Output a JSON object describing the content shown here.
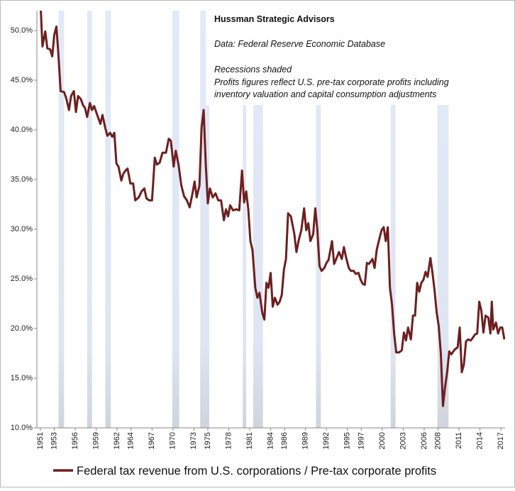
{
  "chart_data": {
    "type": "line",
    "annotations": [
      "Hussman Strategic Advisors",
      "Data: Federal Reserve Economic Database",
      "Recessions shaded",
      "Profits figures reflect U.S. pre-tax  corporate profits including",
      "inventory valuation and capital consumption adjustments"
    ],
    "x": [
      1951.0,
      1951.3,
      1951.7,
      1952.0,
      1952.4,
      1952.7,
      1953.0,
      1953.3,
      1953.6,
      1953.9,
      1954.4,
      1954.7,
      1955.1,
      1955.4,
      1955.8,
      1956.1,
      1956.4,
      1956.8,
      1957.1,
      1957.4,
      1957.7,
      1958.1,
      1958.4,
      1958.7,
      1959.1,
      1959.6,
      1959.9,
      1960.3,
      1960.6,
      1961.0,
      1961.3,
      1961.6,
      1961.9,
      1962.2,
      1962.6,
      1962.9,
      1963.2,
      1963.5,
      1963.9,
      1964.3,
      1964.6,
      1965.1,
      1965.5,
      1965.9,
      1966.2,
      1966.6,
      1967.0,
      1967.4,
      1967.7,
      1968.1,
      1968.5,
      1969.0,
      1969.4,
      1969.7,
      1970.1,
      1970.4,
      1970.8,
      1971.2,
      1971.6,
      1972.0,
      1972.4,
      1972.8,
      1973.1,
      1973.4,
      1973.8,
      1974.1,
      1974.4,
      1974.7,
      1975.0,
      1975.3,
      1975.7,
      1976.1,
      1976.5,
      1976.9,
      1977.3,
      1977.6,
      1977.9,
      1978.2,
      1978.6,
      1979.1,
      1979.5,
      1979.9,
      1980.2,
      1980.5,
      1980.8,
      1981.1,
      1981.4,
      1981.8,
      1982.1,
      1982.4,
      1982.8,
      1983.1,
      1983.4,
      1983.7,
      1984.0,
      1984.3,
      1984.6,
      1985.0,
      1985.3,
      1985.6,
      1985.9,
      1986.2,
      1986.5,
      1986.9,
      1987.4,
      1987.7,
      1988.0,
      1988.4,
      1988.8,
      1989.1,
      1989.4,
      1989.7,
      1990.1,
      1990.4,
      1990.7,
      1991.0,
      1991.3,
      1991.7,
      1992.0,
      1992.3,
      1992.8,
      1993.1,
      1993.4,
      1993.8,
      1994.2,
      1994.5,
      1994.8,
      1995.2,
      1995.5,
      1995.9,
      1996.2,
      1996.6,
      1996.9,
      1997.2,
      1997.5,
      1997.8,
      1998.1,
      1998.6,
      1998.9,
      1999.2,
      1999.5,
      1999.9,
      2000.2,
      2000.5,
      2000.8,
      2001.1,
      2001.4,
      2001.7,
      2002.0,
      2002.4,
      2002.8,
      2003.1,
      2003.4,
      2003.7,
      2004.1,
      2004.4,
      2004.7,
      2005.0,
      2005.3,
      2005.6,
      2005.9,
      2006.2,
      2006.5,
      2006.9,
      2007.2,
      2007.5,
      2007.8,
      2008.1,
      2008.4,
      2008.7,
      2009.0,
      2009.3,
      2009.6,
      2009.9,
      2010.4,
      2010.8,
      2011.1,
      2011.4,
      2011.7,
      2012.0,
      2012.3,
      2012.7,
      2013.0,
      2013.3,
      2013.6,
      2013.9,
      2014.2,
      2014.5,
      2014.8,
      2015.2,
      2015.5,
      2015.7,
      2015.9,
      2016.3,
      2016.6,
      2016.9,
      2017.2,
      2017.5
    ],
    "series": [
      {
        "name": "Federal tax revenue from U.S. corporations / Pre-tax corporate profits",
        "color": "#6e1f1f",
        "values": [
          53,
          48.4,
          49.9,
          48.2,
          48.1,
          47.4,
          49.6,
          50.4,
          47.4,
          43.9,
          43.8,
          43.2,
          42.0,
          43.4,
          43.9,
          41.8,
          43.4,
          43.1,
          42.5,
          42.2,
          41.3,
          42.7,
          42.0,
          42.4,
          41.6,
          40.6,
          41.5,
          40.2,
          39.4,
          39.7,
          39.3,
          39.7,
          36.6,
          36.3,
          34.9,
          35.6,
          35.9,
          36.1,
          34.6,
          34.6,
          32.9,
          33.2,
          33.8,
          34.1,
          33.1,
          32.9,
          32.9,
          37.2,
          36.5,
          36.7,
          37.7,
          37.7,
          39.1,
          38.9,
          36.3,
          37.9,
          36.5,
          34.4,
          33.3,
          32.9,
          32.2,
          33.6,
          34.8,
          33.2,
          34.4,
          40.2,
          42.0,
          36.6,
          32.6,
          34.1,
          33.2,
          33.6,
          32.9,
          32.9,
          30.9,
          32.0,
          31.3,
          32.4,
          31.9,
          32.0,
          31.9,
          35.9,
          32.7,
          33.8,
          32.0,
          28.8,
          27.9,
          24.1,
          23.1,
          23.6,
          21.6,
          20.9,
          24.6,
          24.1,
          25.6,
          22.2,
          23.1,
          22.4,
          22.7,
          23.4,
          25.9,
          27.0,
          31.6,
          31.3,
          29.5,
          27.7,
          28.8,
          29.9,
          32.1,
          29.9,
          30.6,
          28.8,
          29.5,
          32.1,
          29.9,
          26.3,
          25.8,
          26.1,
          26.6,
          26.9,
          28.8,
          26.5,
          27.0,
          27.7,
          27.0,
          28.2,
          27.2,
          26.1,
          25.8,
          25.8,
          25.5,
          25.6,
          24.9,
          24.5,
          24.4,
          26.6,
          26.5,
          27.0,
          26.1,
          27.9,
          28.8,
          29.9,
          30.2,
          28.8,
          30.2,
          24.1,
          22.4,
          19.5,
          17.6,
          17.6,
          17.8,
          19.6,
          18.8,
          20.1,
          18.9,
          21.3,
          21.3,
          24.6,
          23.7,
          24.6,
          24.9,
          25.7,
          25.2,
          27.1,
          25.6,
          23.8,
          21.6,
          20.2,
          17.4,
          12.2,
          14.1,
          15.6,
          17.7,
          17.4,
          17.9,
          18.1,
          20.1,
          15.6,
          16.4,
          18.7,
          18.9,
          18.8,
          19.1,
          19.4,
          19.5,
          22.7,
          21.8,
          19.6,
          21.3,
          21.1,
          19.5,
          22.7,
          19.9,
          20.6,
          19.5,
          20.1,
          20.1,
          18.9
        ]
      }
    ],
    "recessions": [
      [
        1953.6,
        1954.4
      ],
      [
        1957.7,
        1958.4
      ],
      [
        1960.3,
        1961.1
      ],
      [
        1969.9,
        1970.9
      ],
      [
        1973.9,
        1975.2
      ],
      [
        1980.0,
        1980.5
      ],
      [
        1981.5,
        1982.9
      ],
      [
        1990.5,
        1991.2
      ],
      [
        2001.2,
        2001.9
      ],
      [
        2007.9,
        2009.5
      ]
    ],
    "xlim": [
      1950.5,
      2017.6
    ],
    "xticks": [
      1951,
      1953,
      1956,
      1959,
      1962,
      1964,
      1967,
      1970,
      1973,
      1975,
      1978,
      1981,
      1984,
      1986,
      1989,
      1992,
      1995,
      1997,
      2000,
      2003,
      2006,
      2008,
      2011,
      2014,
      2017
    ],
    "ylim": [
      10,
      52
    ],
    "yticks": [
      {
        "value": 10,
        "label": "10.0%"
      },
      {
        "value": 15,
        "label": "15.0%"
      },
      {
        "value": 20,
        "label": "20.0%"
      },
      {
        "value": 25,
        "label": "25.0%"
      },
      {
        "value": 30,
        "label": "30.0%"
      },
      {
        "value": 35,
        "label": "35.0%"
      },
      {
        "value": 40,
        "label": "40.0%"
      },
      {
        "value": 45,
        "label": "45.0%"
      },
      {
        "value": 50,
        "label": "50.0%"
      }
    ]
  }
}
